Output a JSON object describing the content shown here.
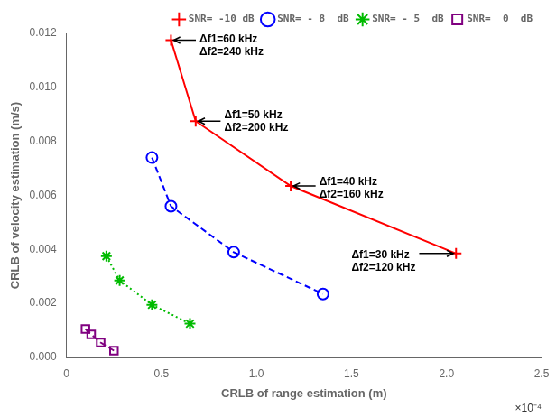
{
  "chart_data": {
    "type": "line",
    "xlabel": "CRLB of range estimation (m)",
    "ylabel": "CRLB of velocity estimation (m/s)",
    "xlim": [
      0,
      0.00025
    ],
    "ylim": [
      0,
      0.012
    ],
    "xticks": [
      0,
      {
        "value": 5e-05,
        "label": "0.5"
      },
      {
        "value": 0.0001,
        "label": "1.0"
      },
      {
        "value": 0.00015,
        "label": "1.5"
      },
      {
        "value": 0.0002,
        "label": "2.0"
      },
      {
        "value": 0.00025,
        "label": "2.5"
      }
    ],
    "yticks": [
      {
        "value": 0,
        "label": "0.000"
      },
      {
        "value": 0.002,
        "label": "0.002"
      },
      {
        "value": 0.004,
        "label": "0.004"
      },
      {
        "value": 0.006,
        "label": "0.006"
      },
      {
        "value": 0.008,
        "label": "0.008"
      },
      {
        "value": 0.01,
        "label": "0.010"
      },
      {
        "value": 0.012,
        "label": "0.012"
      }
    ],
    "grid": false,
    "legend": "upper right",
    "series": [
      {
        "name": "SNR= -10 dB",
        "color": "#ff0000",
        "line_style": "solid",
        "marker": "plus",
        "x": [
          5.5e-05,
          6.8e-05,
          0.000118,
          0.000205
        ],
        "values": [
          0.01175,
          0.00875,
          0.00635,
          0.00385
        ]
      },
      {
        "name": "SNR= - 8  dB",
        "color": "#0000ff",
        "line_style": "dashed",
        "marker": "circle",
        "x": [
          4.5e-05,
          5.5e-05,
          8.8e-05,
          0.000135
        ],
        "values": [
          0.0074,
          0.0056,
          0.0039,
          0.00235
        ]
      },
      {
        "name": "SNR= - 5  dB",
        "color": "#00bb00",
        "line_style": "dotted",
        "marker": "star",
        "x": [
          2.1e-05,
          2.8e-05,
          4.5e-05,
          6.5e-05
        ],
        "values": [
          0.00375,
          0.00285,
          0.00195,
          0.00125
        ]
      },
      {
        "name": "SNR=  0  dB",
        "color": "#800080",
        "line_style": "dashed",
        "marker": "square",
        "x": [
          1e-05,
          1.3e-05,
          1.8e-05,
          2.5e-05
        ],
        "values": [
          0.00105,
          0.00085,
          0.00055,
          0.00025
        ]
      }
    ],
    "annotations": [
      {
        "text": "Δf1=60 kHz\nΔf2=240 kHz",
        "xy": [
          5.5e-05,
          0.01175
        ],
        "xytext": [
          7e-05,
          0.01155
        ]
      },
      {
        "text": "Δf1=50 kHz\nΔf2=200 kHz",
        "xy": [
          6.8e-05,
          0.00875
        ],
        "xytext": [
          8.3e-05,
          0.00875
        ]
      },
      {
        "text": "Δf1=40 kHz\nΔf2=160 kHz",
        "xy": [
          0.000118,
          0.00635
        ],
        "xytext": [
          0.000133,
          0.00625
        ]
      },
      {
        "text": "Δf1=30 kHz\nΔf2=120 kHz",
        "xy": [
          0.000205,
          0.00385
        ],
        "xytext": [
          0.00015,
          0.00355
        ]
      },
      {
        "text": "×10⁻⁴"
      }
    ]
  }
}
